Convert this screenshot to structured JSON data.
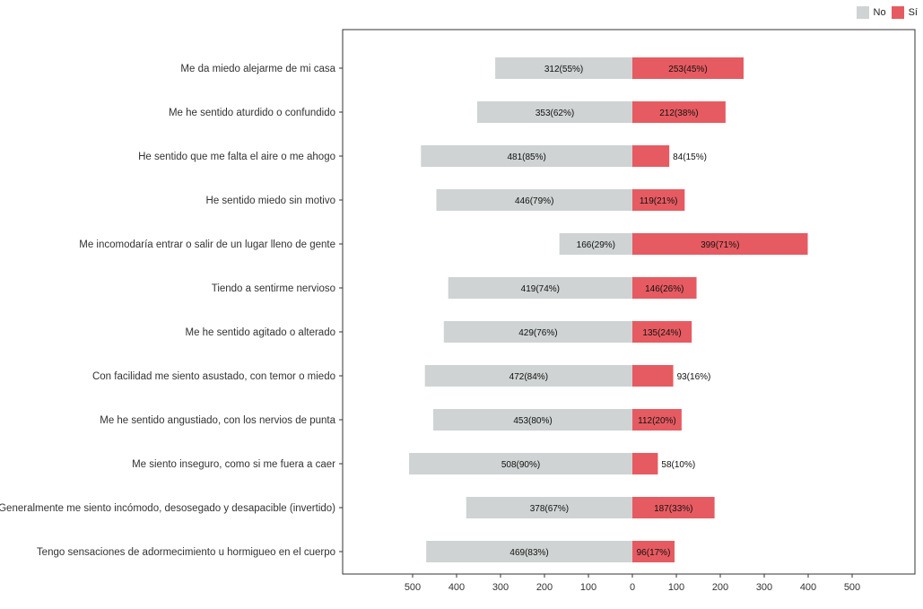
{
  "chart_data": {
    "type": "bar",
    "orientation": "horizontal-diverging",
    "title": "",
    "xlabel": "",
    "ylabel": "",
    "xlim": [
      -500,
      500
    ],
    "x_ticks": [
      -500,
      -400,
      -300,
      -200,
      -100,
      0,
      100,
      200,
      300,
      400,
      500
    ],
    "x_tick_labels": [
      "500",
      "400",
      "300",
      "200",
      "100",
      "0",
      "100",
      "200",
      "300",
      "400",
      "500"
    ],
    "grid": false,
    "legend_position": "top-right",
    "categories": [
      "Me da miedo alejarme de mi casa",
      "Me he sentido aturdido o confundido",
      "He sentido que me falta el aire o me ahogo",
      "He sentido miedo sin motivo",
      "Me incomodaría entrar o salir de un lugar lleno de gente",
      "Tiendo a sentirme nervioso",
      "Me he sentido agitado o alterado",
      "Con facilidad me siento asustado, con temor o miedo",
      "Me he sentido angustiado, con los nervios de punta",
      "Me siento inseguro, como si me fuera a caer",
      "Generalmente me siento incómodo, desosegado y desapacible (invertido)",
      "Tengo sensaciones de adormecimiento u hormigueo en el cuerpo"
    ],
    "series": [
      {
        "name": "No",
        "color": "#cfd3d3",
        "values": [
          312,
          353,
          481,
          446,
          166,
          419,
          429,
          472,
          453,
          508,
          378,
          469
        ],
        "labels": [
          "312(55%)",
          "353(62%)",
          "481(85%)",
          "446(79%)",
          "166(29%)",
          "419(74%)",
          "429(76%)",
          "472(84%)",
          "453(80%)",
          "508(90%)",
          "378(67%)",
          "469(83%)"
        ]
      },
      {
        "name": "Sí",
        "color": "#e65b61",
        "values": [
          253,
          212,
          84,
          119,
          399,
          146,
          135,
          93,
          112,
          58,
          187,
          96
        ],
        "labels": [
          "253(45%)",
          "212(38%)",
          "84(15%)",
          "119(21%)",
          "399(71%)",
          "146(26%)",
          "135(24%)",
          "93(16%)",
          "112(20%)",
          "58(10%)",
          "187(33%)",
          "96(17%)"
        ]
      }
    ]
  }
}
